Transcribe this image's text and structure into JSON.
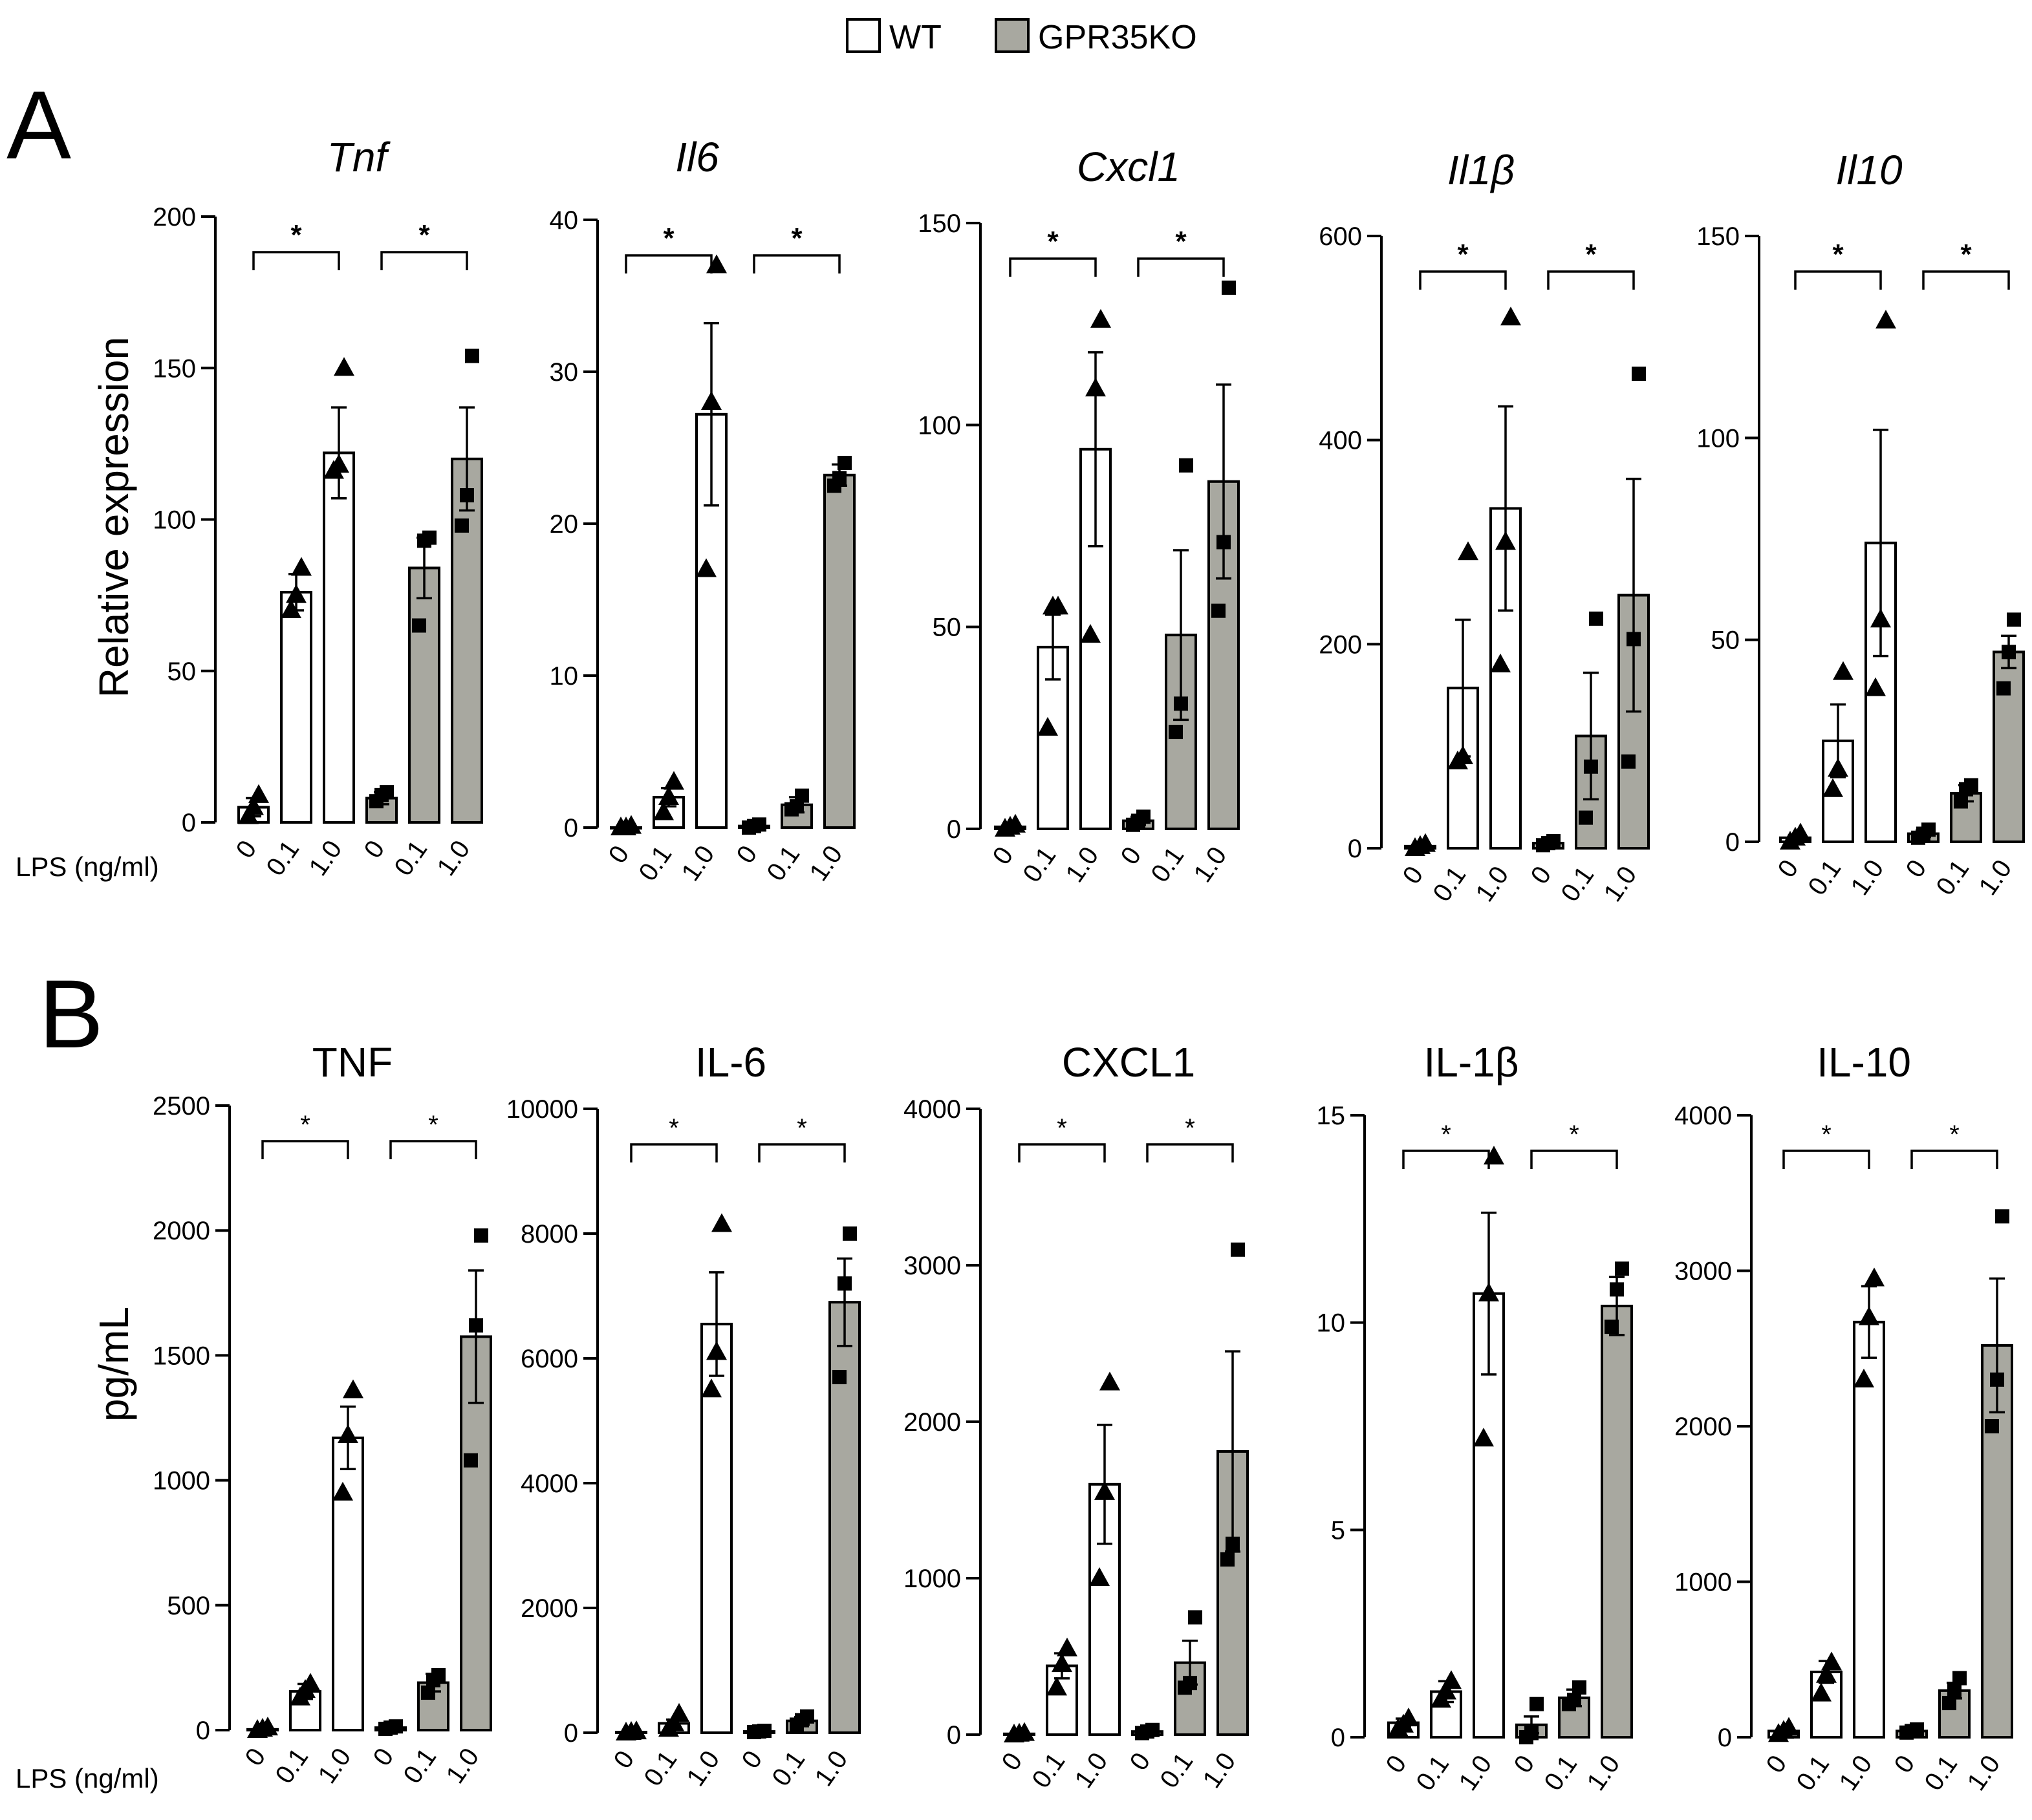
{
  "legend": {
    "items": [
      {
        "label": "WT",
        "color": "#ffffff"
      },
      {
        "label": "GPR35KO",
        "color": "#a8a8a0"
      }
    ]
  },
  "panels": [
    {
      "letter": "A",
      "ylabel": "Relative expression",
      "lps_label": "LPS (ng/ml)"
    },
    {
      "letter": "B",
      "ylabel": "pg/mL",
      "lps_label": "LPS (ng/ml)"
    }
  ],
  "colors": {
    "wt": "#ffffff",
    "ko": "#a8a8a0",
    "stroke": "#000000"
  },
  "chart_data": [
    {
      "type": "bar",
      "panel": "A",
      "title": "Tnf",
      "italic": true,
      "ylim": [
        0,
        200
      ],
      "yticks": [
        0,
        50,
        100,
        150,
        200
      ],
      "categories": [
        "0",
        "0.1",
        "1.0",
        "0",
        "0.1",
        "1.0"
      ],
      "groups": [
        "WT",
        "WT",
        "WT",
        "GPR35KO",
        "GPR35KO",
        "GPR35KO"
      ],
      "values": [
        5,
        76,
        122,
        8,
        84,
        120
      ],
      "errors": [
        3,
        6,
        15,
        2,
        10,
        17
      ],
      "points": [
        [
          2,
          5,
          9
        ],
        [
          70,
          75,
          84
        ],
        [
          116,
          118,
          150
        ],
        [
          7,
          9,
          10
        ],
        [
          65,
          93,
          94
        ],
        [
          98,
          108,
          154
        ]
      ],
      "significance": [
        {
          "from": 0,
          "to": 2,
          "label": "*"
        },
        {
          "from": 3,
          "to": 5,
          "label": "*"
        }
      ]
    },
    {
      "type": "bar",
      "panel": "A",
      "title": "Il6",
      "italic": true,
      "ylim": [
        0,
        40
      ],
      "yticks": [
        0,
        10,
        20,
        30,
        40
      ],
      "categories": [
        "0",
        "0.1",
        "1.0",
        "0",
        "0.1",
        "1.0"
      ],
      "groups": [
        "WT",
        "WT",
        "WT",
        "GPR35KO",
        "GPR35KO",
        "GPR35KO"
      ],
      "values": [
        0,
        2,
        27.2,
        0.1,
        1.5,
        23.2
      ],
      "errors": [
        0.1,
        0.6,
        6,
        0.1,
        0.5,
        0.7
      ],
      "points": [
        [
          0,
          0,
          0.1
        ],
        [
          1,
          2,
          3
        ],
        [
          17,
          28,
          37
        ],
        [
          0,
          0.1,
          0.2
        ],
        [
          1.2,
          1.4,
          2.1
        ],
        [
          22.5,
          23,
          24
        ]
      ],
      "significance": [
        {
          "from": 0,
          "to": 2,
          "label": "*"
        },
        {
          "from": 3,
          "to": 5,
          "label": "*"
        }
      ]
    },
    {
      "type": "bar",
      "panel": "A",
      "title": "Cxcl1",
      "italic": true,
      "ylim": [
        0,
        150
      ],
      "yticks": [
        0,
        50,
        100,
        150
      ],
      "categories": [
        "0",
        "0.1",
        "1.0",
        "0",
        "0.1",
        "1.0"
      ],
      "groups": [
        "WT",
        "WT",
        "WT",
        "GPR35KO",
        "GPR35KO",
        "GPR35KO"
      ],
      "values": [
        0.5,
        45,
        94,
        2,
        48,
        86
      ],
      "errors": [
        0.3,
        8,
        24,
        1,
        21,
        24
      ],
      "points": [
        [
          0,
          0.5,
          1
        ],
        [
          25,
          55,
          55
        ],
        [
          48,
          109,
          126
        ],
        [
          1,
          2,
          3
        ],
        [
          24,
          31,
          90
        ],
        [
          54,
          71,
          134
        ]
      ],
      "significance": [
        {
          "from": 0,
          "to": 2,
          "label": "*"
        },
        {
          "from": 3,
          "to": 5,
          "label": "*"
        }
      ]
    },
    {
      "type": "bar",
      "panel": "A",
      "title": "Il1β",
      "italic": true,
      "ylim": [
        0,
        600
      ],
      "yticks": [
        0,
        200,
        400,
        600
      ],
      "categories": [
        "0",
        "0.1",
        "1.0",
        "0",
        "0.1",
        "1.0"
      ],
      "groups": [
        "WT",
        "WT",
        "WT",
        "GPR35KO",
        "GPR35KO",
        "GPR35KO"
      ],
      "values": [
        2,
        157,
        333,
        5,
        110,
        248
      ],
      "errors": [
        1,
        67,
        100,
        2,
        62,
        114
      ],
      "points": [
        [
          0,
          2,
          4
        ],
        [
          85,
          90,
          290
        ],
        [
          180,
          300,
          520
        ],
        [
          3,
          5,
          7
        ],
        [
          30,
          80,
          225
        ],
        [
          85,
          205,
          465
        ]
      ],
      "significance": [
        {
          "from": 0,
          "to": 2,
          "label": "*"
        },
        {
          "from": 3,
          "to": 5,
          "label": "*"
        }
      ]
    },
    {
      "type": "bar",
      "panel": "A",
      "title": "Il10",
      "italic": true,
      "ylim": [
        0,
        150
      ],
      "yticks": [
        0,
        50,
        100,
        150
      ],
      "categories": [
        "0",
        "0.1",
        "1.0",
        "0",
        "0.1",
        "1.0"
      ],
      "groups": [
        "WT",
        "WT",
        "WT",
        "GPR35KO",
        "GPR35KO",
        "GPR35KO"
      ],
      "values": [
        1,
        25,
        74,
        2,
        12,
        47
      ],
      "errors": [
        0.5,
        9,
        28,
        0.8,
        2,
        4
      ],
      "points": [
        [
          0,
          1,
          2
        ],
        [
          13,
          18,
          42
        ],
        [
          38,
          55,
          129
        ],
        [
          1,
          2,
          3
        ],
        [
          10,
          13,
          14
        ],
        [
          38,
          47,
          55
        ]
      ],
      "significance": [
        {
          "from": 0,
          "to": 2,
          "label": "*"
        },
        {
          "from": 3,
          "to": 5,
          "label": "*"
        }
      ]
    },
    {
      "type": "bar",
      "panel": "B",
      "title": "TNF",
      "italic": false,
      "ylim": [
        0,
        2500
      ],
      "yticks": [
        0,
        500,
        1000,
        1500,
        2000,
        2500
      ],
      "categories": [
        "0",
        "0.1",
        "1.0",
        "0",
        "0.1",
        "1.0"
      ],
      "groups": [
        "WT",
        "WT",
        "WT",
        "GPR35KO",
        "GPR35KO",
        "GPR35KO"
      ],
      "values": [
        3,
        155,
        1170,
        10,
        190,
        1575
      ],
      "errors": [
        2,
        30,
        125,
        5,
        35,
        265
      ],
      "points": [
        [
          0,
          5,
          10
        ],
        [
          130,
          160,
          185
        ],
        [
          950,
          1180,
          1360
        ],
        [
          5,
          10,
          15
        ],
        [
          150,
          200,
          220
        ],
        [
          1080,
          1620,
          1980
        ]
      ],
      "significance": [
        {
          "from": 0,
          "to": 2,
          "label": "*"
        },
        {
          "from": 3,
          "to": 5,
          "label": "*"
        }
      ]
    },
    {
      "type": "bar",
      "panel": "B",
      "title": "IL-6",
      "italic": false,
      "ylim": [
        0,
        10000
      ],
      "yticks": [
        0,
        2000,
        4000,
        6000,
        8000,
        10000
      ],
      "categories": [
        "0",
        "0.1",
        "1.0",
        "0",
        "0.1",
        "1.0"
      ],
      "groups": [
        "WT",
        "WT",
        "WT",
        "GPR35KO",
        "GPR35KO",
        "GPR35KO"
      ],
      "values": [
        10,
        150,
        6550,
        20,
        190,
        6900
      ],
      "errors": [
        5,
        60,
        830,
        10,
        60,
        700
      ],
      "points": [
        [
          0,
          10,
          20
        ],
        [
          60,
          150,
          300
        ],
        [
          5500,
          6100,
          8150
        ],
        [
          10,
          20,
          30
        ],
        [
          130,
          200,
          260
        ],
        [
          5700,
          7200,
          8000
        ]
      ],
      "significance": [
        {
          "from": 0,
          "to": 2,
          "label": "*"
        },
        {
          "from": 3,
          "to": 5,
          "label": "*"
        }
      ]
    },
    {
      "type": "bar",
      "panel": "B",
      "title": "CXCL1",
      "italic": false,
      "ylim": [
        0,
        4000
      ],
      "yticks": [
        0,
        1000,
        2000,
        3000,
        4000
      ],
      "categories": [
        "0",
        "0.1",
        "1.0",
        "0",
        "0.1",
        "1.0"
      ],
      "groups": [
        "WT",
        "WT",
        "WT",
        "GPR35KO",
        "GPR35KO",
        "GPR35KO"
      ],
      "values": [
        5,
        440,
        1600,
        20,
        460,
        1810
      ],
      "errors": [
        3,
        80,
        380,
        10,
        140,
        640
      ],
      "points": [
        [
          0,
          5,
          10
        ],
        [
          300,
          450,
          550
        ],
        [
          1000,
          1550,
          2250
        ],
        [
          10,
          20,
          30
        ],
        [
          300,
          330,
          750
        ],
        [
          1120,
          1220,
          3100
        ]
      ],
      "significance": [
        {
          "from": 0,
          "to": 2,
          "label": "*"
        },
        {
          "from": 3,
          "to": 5,
          "label": "*"
        }
      ]
    },
    {
      "type": "bar",
      "panel": "B",
      "title": "IL-1β",
      "italic": false,
      "ylim": [
        0,
        15
      ],
      "yticks": [
        0,
        5,
        10,
        15
      ],
      "categories": [
        "0",
        "0.1",
        "1.0",
        "0",
        "0.1",
        "1.0"
      ],
      "groups": [
        "WT",
        "WT",
        "WT",
        "GPR35KO",
        "GPR35KO",
        "GPR35KO"
      ],
      "values": [
        0.35,
        1.1,
        10.7,
        0.3,
        0.95,
        10.4
      ],
      "errors": [
        0.1,
        0.25,
        1.95,
        0.2,
        0.2,
        0.7
      ],
      "points": [
        [
          0.2,
          0.3,
          0.45
        ],
        [
          0.9,
          1.1,
          1.35
        ],
        [
          7.2,
          10.7,
          14
        ],
        [
          0,
          0.1,
          0.8
        ],
        [
          0.8,
          0.9,
          1.2
        ],
        [
          9.9,
          10.8,
          11.3
        ]
      ],
      "significance": [
        {
          "from": 0,
          "to": 2,
          "label": "*"
        },
        {
          "from": 3,
          "to": 5,
          "label": "*"
        }
      ]
    },
    {
      "type": "bar",
      "panel": "B",
      "title": "IL-10",
      "italic": false,
      "ylim": [
        0,
        4000
      ],
      "yticks": [
        0,
        1000,
        2000,
        3000,
        4000
      ],
      "categories": [
        "0",
        "0.1",
        "1.0",
        "0",
        "0.1",
        "1.0"
      ],
      "groups": [
        "WT",
        "WT",
        "WT",
        "GPR35KO",
        "GPR35KO",
        "GPR35KO"
      ],
      "values": [
        40,
        420,
        2670,
        40,
        300,
        2520
      ],
      "errors": [
        15,
        70,
        230,
        10,
        50,
        430
      ],
      "points": [
        [
          20,
          40,
          60
        ],
        [
          280,
          400,
          480
        ],
        [
          2300,
          2700,
          2950
        ],
        [
          30,
          40,
          50
        ],
        [
          220,
          300,
          380
        ],
        [
          2000,
          2300,
          3350
        ]
      ],
      "significance": [
        {
          "from": 0,
          "to": 2,
          "label": "*"
        },
        {
          "from": 3,
          "to": 5,
          "label": "*"
        }
      ]
    }
  ]
}
